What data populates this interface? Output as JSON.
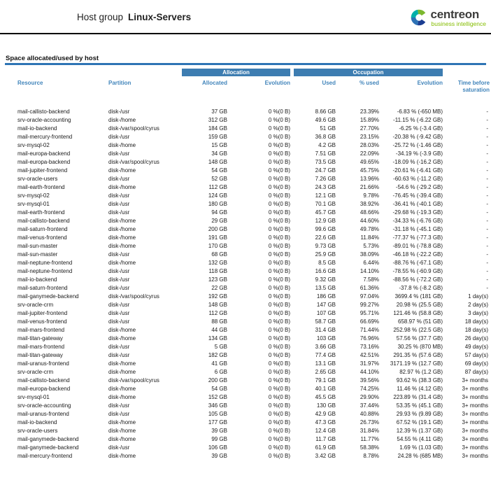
{
  "header": {
    "title_prefix": "Host group",
    "title_group": "Linux-Servers",
    "logo": {
      "brand": "centreon",
      "tagline": "business intelligence"
    }
  },
  "colors": {
    "table_header_blue": "#3d7db1",
    "header_text_blue": "#4285bb",
    "tagline_green": "#84bd00",
    "section_rule_blue": "#2e74b5"
  },
  "table": {
    "section_title": "Space allocated/used by host",
    "group_headers": {
      "allocation": "Allocation",
      "occupation": "Occupation"
    },
    "columns": [
      "Resource",
      "Partition",
      "Allocated",
      "Evolution",
      "Used",
      "% used",
      "Evolution",
      "Time before saturation"
    ],
    "column_keys": [
      "resource",
      "partition",
      "allocated",
      "allocation-evolution",
      "used",
      "pct-used",
      "occupation-evolution",
      "time-before-saturation"
    ],
    "rows": [
      [
        "mail-callisto-backend",
        "disk-/usr",
        "37 GB",
        "0 %(0 B)",
        "8.66 GB",
        "23.39%",
        "-6.83 % (-650 MB)",
        "-"
      ],
      [
        "srv-oracle-accounting",
        "disk-/home",
        "312 GB",
        "0 %(0 B)",
        "49.6 GB",
        "15.89%",
        "-11.15 % (-6.22 GB)",
        "-"
      ],
      [
        "mail-io-backend",
        "disk-/var/spool/cyrus",
        "184 GB",
        "0 %(0 B)",
        "51 GB",
        "27.70%",
        "-6.25 % (-3.4 GB)",
        "-"
      ],
      [
        "mail-mercury-frontend",
        "disk-/usr",
        "159 GB",
        "0 %(0 B)",
        "36.8 GB",
        "23.15%",
        "-20.38 % (-9.42 GB)",
        "-"
      ],
      [
        "srv-mysql-02",
        "disk-/home",
        "15 GB",
        "0 %(0 B)",
        "4.2 GB",
        "28.03%",
        "-25.72 % (-1.46 GB)",
        "-"
      ],
      [
        "mail-europa-backend",
        "disk-/usr",
        "34 GB",
        "0 %(0 B)",
        "7.51 GB",
        "22.09%",
        "-34.19 % (-3.9 GB)",
        "-"
      ],
      [
        "mail-europa-backend",
        "disk-/var/spool/cyrus",
        "148 GB",
        "0 %(0 B)",
        "73.5 GB",
        "49.65%",
        "-18.09 % (-16.2 GB)",
        "-"
      ],
      [
        "mail-jupiter-frontend",
        "disk-/home",
        "54 GB",
        "0 %(0 B)",
        "24.7 GB",
        "45.75%",
        "-20.61 % (-6.41 GB)",
        "-"
      ],
      [
        "srv-oracle-users",
        "disk-/usr",
        "52 GB",
        "0 %(0 B)",
        "7.26 GB",
        "13.96%",
        "-60.63 % (-11.2 GB)",
        "-"
      ],
      [
        "mail-earth-frontend",
        "disk-/home",
        "112 GB",
        "0 %(0 B)",
        "24.3 GB",
        "21.66%",
        "-54.6 % (-29.2 GB)",
        "-"
      ],
      [
        "srv-mysql-02",
        "disk-/usr",
        "124 GB",
        "0 %(0 B)",
        "12.1 GB",
        "9.78%",
        "-76.45 % (-39.4 GB)",
        "-"
      ],
      [
        "srv-mysql-01",
        "disk-/usr",
        "180 GB",
        "0 %(0 B)",
        "70.1 GB",
        "38.92%",
        "-36.41 % (-40.1 GB)",
        "-"
      ],
      [
        "mail-earth-frontend",
        "disk-/usr",
        "94 GB",
        "0 %(0 B)",
        "45.7 GB",
        "48.66%",
        "-29.68 % (-19.3 GB)",
        "-"
      ],
      [
        "mail-callisto-backend",
        "disk-/home",
        "29 GB",
        "0 %(0 B)",
        "12.9 GB",
        "44.60%",
        "-34.33 % (-6.76 GB)",
        "-"
      ],
      [
        "mail-saturn-frontend",
        "disk-/home",
        "200 GB",
        "0 %(0 B)",
        "99.6 GB",
        "49.78%",
        "-31.18 % (-45.1 GB)",
        "-"
      ],
      [
        "mail-venus-frontend",
        "disk-/home",
        "191 GB",
        "0 %(0 B)",
        "22.6 GB",
        "11.84%",
        "-77.37 % (-77.3 GB)",
        "-"
      ],
      [
        "mail-sun-master",
        "disk-/home",
        "170 GB",
        "0 %(0 B)",
        "9.73 GB",
        "5.73%",
        "-89.01 % (-78.8 GB)",
        "-"
      ],
      [
        "mail-sun-master",
        "disk-/usr",
        "68 GB",
        "0 %(0 B)",
        "25.9 GB",
        "38.09%",
        "-46.18 % (-22.2 GB)",
        "-"
      ],
      [
        "mail-neptune-frontend",
        "disk-/home",
        "132 GB",
        "0 %(0 B)",
        "8.5 GB",
        "6.44%",
        "-88.76 % (-67.1 GB)",
        "-"
      ],
      [
        "mail-neptune-frontend",
        "disk-/usr",
        "118 GB",
        "0 %(0 B)",
        "16.6 GB",
        "14.10%",
        "-78.55 % (-60.9 GB)",
        "-"
      ],
      [
        "mail-io-backend",
        "disk-/usr",
        "123 GB",
        "0 %(0 B)",
        "9.32 GB",
        "7.58%",
        "-88.56 % (-72.2 GB)",
        "-"
      ],
      [
        "mail-saturn-frontend",
        "disk-/usr",
        "22 GB",
        "0 %(0 B)",
        "13.5 GB",
        "61.36%",
        "-37.8 % (-8.2 GB)",
        "-"
      ],
      [
        "mail-ganymede-backend",
        "disk-/var/spool/cyrus",
        "192 GB",
        "0 %(0 B)",
        "186 GB",
        "97.04%",
        "3699.4 % (181 GB)",
        "1 day(s)"
      ],
      [
        "srv-oracle-crm",
        "disk-/usr",
        "148 GB",
        "0 %(0 B)",
        "147 GB",
        "99.27%",
        "20.98 % (25.5 GB)",
        "2 day(s)"
      ],
      [
        "mail-jupiter-frontend",
        "disk-/usr",
        "112 GB",
        "0 %(0 B)",
        "107 GB",
        "95.71%",
        "121.46 % (58.8 GB)",
        "3 day(s)"
      ],
      [
        "mail-venus-frontend",
        "disk-/usr",
        "88 GB",
        "0 %(0 B)",
        "58.7 GB",
        "66.69%",
        "658.97 % (51 GB)",
        "18 day(s)"
      ],
      [
        "mail-mars-frontend",
        "disk-/home",
        "44 GB",
        "0 %(0 B)",
        "31.4 GB",
        "71.44%",
        "252.98 % (22.5 GB)",
        "18 day(s)"
      ],
      [
        "mail-titan-gateway",
        "disk-/home",
        "134 GB",
        "0 %(0 B)",
        "103 GB",
        "76.96%",
        "57.56 % (37.7 GB)",
        "26 day(s)"
      ],
      [
        "mail-mars-frontend",
        "disk-/usr",
        "5 GB",
        "0 %(0 B)",
        "3.66 GB",
        "73.16%",
        "30.25 % (870 MB)",
        "49 day(s)"
      ],
      [
        "mail-titan-gateway",
        "disk-/usr",
        "182 GB",
        "0 %(0 B)",
        "77.4 GB",
        "42.51%",
        "291.35 % (57.6 GB)",
        "57 day(s)"
      ],
      [
        "mail-uranus-frontend",
        "disk-/home",
        "41 GB",
        "0 %(0 B)",
        "13.1 GB",
        "31.97%",
        "3171.19 % (12.7 GB)",
        "69 day(s)"
      ],
      [
        "srv-oracle-crm",
        "disk-/home",
        "6 GB",
        "0 %(0 B)",
        "2.65 GB",
        "44.10%",
        "82.97 % (1.2 GB)",
        "87 day(s)"
      ],
      [
        "mail-callisto-backend",
        "disk-/var/spool/cyrus",
        "200 GB",
        "0 %(0 B)",
        "79.1 GB",
        "39.56%",
        "93.62 % (38.3 GB)",
        "3+ months"
      ],
      [
        "mail-europa-backend",
        "disk-/home",
        "54 GB",
        "0 %(0 B)",
        "40.1 GB",
        "74.25%",
        "11.46 % (4.12 GB)",
        "3+ months"
      ],
      [
        "srv-mysql-01",
        "disk-/home",
        "152 GB",
        "0 %(0 B)",
        "45.5 GB",
        "29.90%",
        "223.89 % (31.4 GB)",
        "3+ months"
      ],
      [
        "srv-oracle-accounting",
        "disk-/usr",
        "346 GB",
        "0 %(0 B)",
        "130 GB",
        "37.44%",
        "53.35 % (45.1 GB)",
        "3+ months"
      ],
      [
        "mail-uranus-frontend",
        "disk-/usr",
        "105 GB",
        "0 %(0 B)",
        "42.9 GB",
        "40.88%",
        "29.93 % (9.89 GB)",
        "3+ months"
      ],
      [
        "mail-io-backend",
        "disk-/home",
        "177 GB",
        "0 %(0 B)",
        "47.3 GB",
        "26.73%",
        "67.52 % (19.1 GB)",
        "3+ months"
      ],
      [
        "srv-oracle-users",
        "disk-/home",
        "39 GB",
        "0 %(0 B)",
        "12.4 GB",
        "31.84%",
        "12.39 % (1.37 GB)",
        "3+ months"
      ],
      [
        "mail-ganymede-backend",
        "disk-/home",
        "99 GB",
        "0 %(0 B)",
        "11.7 GB",
        "11.77%",
        "54.55 % (4.11 GB)",
        "3+ months"
      ],
      [
        "mail-ganymede-backend",
        "disk-/usr",
        "106 GB",
        "0 %(0 B)",
        "61.9 GB",
        "58.38%",
        "1.69 % (1.03 GB)",
        "3+ months"
      ],
      [
        "mail-mercury-frontend",
        "disk-/home",
        "39 GB",
        "0 %(0 B)",
        "3.42 GB",
        "8.78%",
        "24.28 % (685 MB)",
        "3+ months"
      ]
    ]
  }
}
